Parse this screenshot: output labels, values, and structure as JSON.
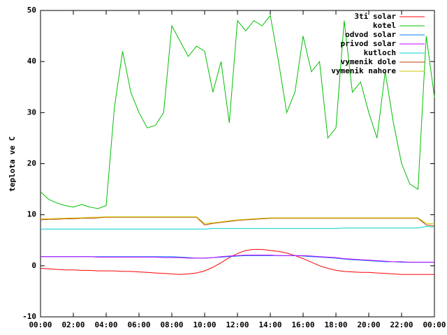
{
  "chart_data": {
    "type": "line",
    "y_label": "teplota ve C",
    "x": [
      0,
      0.5,
      1,
      1.5,
      2,
      2.5,
      3,
      3.5,
      4,
      4.5,
      5,
      5.5,
      6,
      6.5,
      7,
      7.5,
      8,
      8.5,
      9,
      9.5,
      10,
      10.5,
      11,
      11.5,
      12,
      12.5,
      13,
      13.5,
      14,
      14.5,
      15,
      15.5,
      16,
      16.5,
      17,
      17.5,
      18,
      18.5,
      19,
      19.5,
      20,
      20.5,
      21,
      21.5,
      22,
      22.5,
      23,
      23.5,
      24
    ],
    "xlim": [
      0,
      24
    ],
    "xticks": [
      {
        "value": 0,
        "label": "00:00"
      },
      {
        "value": 2,
        "label": "02:00"
      },
      {
        "value": 4,
        "label": "04:00"
      },
      {
        "value": 6,
        "label": "06:00"
      },
      {
        "value": 8,
        "label": "08:00"
      },
      {
        "value": 10,
        "label": "10:00"
      },
      {
        "value": 12,
        "label": "12:00"
      },
      {
        "value": 14,
        "label": "14:00"
      },
      {
        "value": 16,
        "label": "16:00"
      },
      {
        "value": 18,
        "label": "18:00"
      },
      {
        "value": 20,
        "label": "20:00"
      },
      {
        "value": 22,
        "label": "22:00"
      },
      {
        "value": 24,
        "label": "00:00"
      }
    ],
    "ylim": [
      -10,
      50
    ],
    "yticks": [
      -10,
      0,
      10,
      20,
      30,
      40,
      50
    ],
    "grid": false,
    "legend": "top-right",
    "series": [
      {
        "name": "3ti solar",
        "color": "#ff0000",
        "values": [
          -0.5,
          -0.6,
          -0.7,
          -0.8,
          -0.8,
          -0.9,
          -0.9,
          -1.0,
          -1.0,
          -1.0,
          -1.1,
          -1.1,
          -1.2,
          -1.3,
          -1.4,
          -1.5,
          -1.6,
          -1.7,
          -1.6,
          -1.4,
          -1.0,
          -0.3,
          0.6,
          1.6,
          2.4,
          3.0,
          3.2,
          3.2,
          3.0,
          2.8,
          2.5,
          2.0,
          1.4,
          0.7,
          0.0,
          -0.5,
          -0.9,
          -1.1,
          -1.2,
          -1.3,
          -1.3,
          -1.4,
          -1.5,
          -1.6,
          -1.7,
          -1.7,
          -1.7,
          -1.7,
          -1.7
        ]
      },
      {
        "name": "kotel",
        "color": "#00c000",
        "values": [
          14.5,
          13,
          12.3,
          11.8,
          11.5,
          12,
          11.5,
          11.2,
          11.8,
          31,
          42,
          34,
          30,
          27,
          27.5,
          30,
          47,
          44,
          41,
          43,
          42,
          34,
          40,
          28,
          48,
          46,
          48,
          47,
          49,
          40,
          30,
          34,
          45,
          38,
          40,
          25,
          27,
          48,
          34,
          36,
          30,
          25,
          38,
          28,
          20,
          16,
          15,
          45,
          33
        ]
      },
      {
        "name": "odvod solar",
        "color": "#0080ff",
        "values": [
          1.8,
          1.8,
          1.8,
          1.8,
          1.8,
          1.8,
          1.8,
          1.8,
          1.8,
          1.8,
          1.8,
          1.8,
          1.8,
          1.8,
          1.8,
          1.8,
          1.8,
          1.7,
          1.6,
          1.5,
          1.5,
          1.6,
          1.7,
          1.8,
          1.9,
          2.0,
          2.0,
          2.0,
          2.0,
          2.0,
          2.0,
          2.0,
          1.9,
          1.8,
          1.7,
          1.6,
          1.5,
          1.3,
          1.2,
          1.1,
          1.0,
          0.9,
          0.8,
          0.8,
          0.7,
          0.7,
          0.7,
          0.7,
          0.7
        ]
      },
      {
        "name": "privod solar",
        "color": "#c000ff",
        "values": [
          1.8,
          1.8,
          1.8,
          1.8,
          1.8,
          1.8,
          1.8,
          1.7,
          1.7,
          1.7,
          1.7,
          1.7,
          1.7,
          1.7,
          1.7,
          1.6,
          1.6,
          1.6,
          1.5,
          1.5,
          1.5,
          1.6,
          1.8,
          1.9,
          2.0,
          2.1,
          2.1,
          2.1,
          2.1,
          2.0,
          2.0,
          2.0,
          2.0,
          1.9,
          1.8,
          1.7,
          1.6,
          1.4,
          1.3,
          1.2,
          1.1,
          1.0,
          0.9,
          0.8,
          0.8,
          0.7,
          0.7,
          0.7,
          0.7
        ]
      },
      {
        "name": "kutloch",
        "color": "#00d0d0",
        "values": [
          7.2,
          7.2,
          7.2,
          7.2,
          7.2,
          7.2,
          7.2,
          7.2,
          7.2,
          7.2,
          7.2,
          7.2,
          7.2,
          7.2,
          7.2,
          7.2,
          7.2,
          7.2,
          7.2,
          7.2,
          7.2,
          7.3,
          7.3,
          7.3,
          7.3,
          7.3,
          7.3,
          7.3,
          7.3,
          7.3,
          7.3,
          7.3,
          7.3,
          7.3,
          7.3,
          7.3,
          7.3,
          7.4,
          7.4,
          7.4,
          7.4,
          7.4,
          7.4,
          7.4,
          7.4,
          7.4,
          7.4,
          7.7,
          7.6
        ]
      },
      {
        "name": "vymenik dole",
        "color": "#c04000",
        "values": [
          9.0,
          9.1,
          9.1,
          9.2,
          9.2,
          9.3,
          9.3,
          9.4,
          9.5,
          9.5,
          9.5,
          9.5,
          9.5,
          9.5,
          9.5,
          9.5,
          9.5,
          9.5,
          9.5,
          9.5,
          8.0,
          8.3,
          8.5,
          8.7,
          8.9,
          9.0,
          9.1,
          9.2,
          9.3,
          9.3,
          9.3,
          9.3,
          9.3,
          9.3,
          9.3,
          9.3,
          9.3,
          9.3,
          9.3,
          9.3,
          9.3,
          9.3,
          9.3,
          9.3,
          9.3,
          9.3,
          9.3,
          8.0,
          7.8
        ]
      },
      {
        "name": "vymenik nahore",
        "color": "#c8c800",
        "values": [
          9.2,
          9.2,
          9.3,
          9.3,
          9.4,
          9.4,
          9.5,
          9.5,
          9.6,
          9.6,
          9.6,
          9.6,
          9.6,
          9.6,
          9.6,
          9.6,
          9.6,
          9.6,
          9.6,
          9.6,
          8.3,
          8.4,
          8.6,
          8.8,
          9.0,
          9.1,
          9.2,
          9.3,
          9.4,
          9.4,
          9.4,
          9.4,
          9.4,
          9.4,
          9.4,
          9.4,
          9.4,
          9.4,
          9.4,
          9.4,
          9.4,
          9.4,
          9.4,
          9.4,
          9.4,
          9.4,
          9.4,
          8.3,
          8.2
        ]
      }
    ]
  }
}
